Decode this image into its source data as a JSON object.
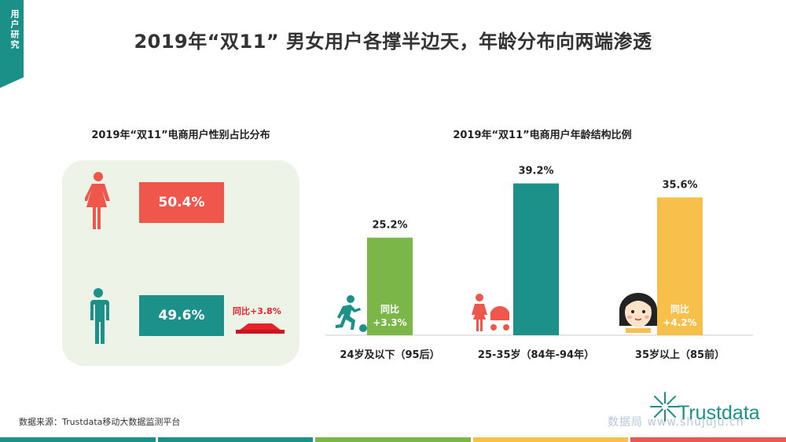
{
  "section_tab": "用户研究",
  "title": "2019年“双11” 男女用户各撑半边天，年龄分布向两端渗透",
  "source": "数据来源：Trustdata移动大数据监测平台",
  "watermark": "数据局 www.shujuju.cn",
  "brand": "Trustdata",
  "colors": {
    "teal": "#1b918a",
    "red": "#f0574c",
    "green": "#7ab648",
    "yellow": "#f7c04a"
  },
  "gender": {
    "title": "2019年“双11”电商用户性别占比分布",
    "female": {
      "value": "50.4%",
      "icon": "female-icon"
    },
    "male": {
      "value": "49.6%",
      "icon": "male-icon",
      "yoy": "同比+3.8%"
    }
  },
  "chart_data": {
    "type": "bar",
    "title": "2019年“双11”电商用户年龄结构比例",
    "categories": [
      "24岁及以下（95后）",
      "25-35岁（84年-94年）",
      "35岁以上（85前）"
    ],
    "values": [
      25.2,
      39.2,
      35.6
    ],
    "value_labels": [
      "25.2%",
      "39.2%",
      "35.6%"
    ],
    "bar_colors": [
      "#7ab648",
      "#1b918a",
      "#f7c04a"
    ],
    "yoy": [
      {
        "label": "同比",
        "value": "+3.3%"
      },
      null,
      {
        "label": "同比",
        "value": "+4.2%"
      }
    ],
    "icons": [
      "runner-icon",
      "mother-stroller-icon",
      "woman-face-icon"
    ],
    "ylim": [
      0,
      45
    ]
  }
}
